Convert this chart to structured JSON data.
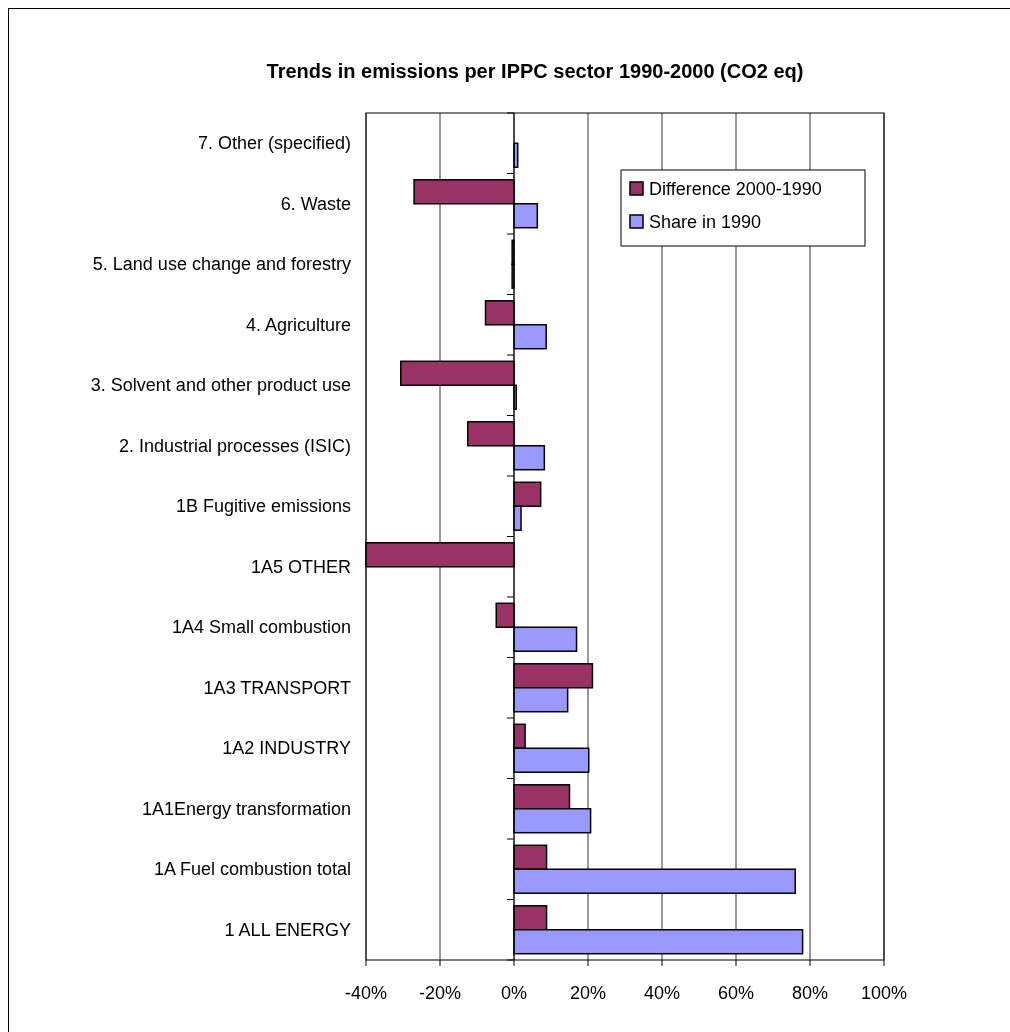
{
  "chart_data": {
    "type": "bar",
    "orientation": "horizontal",
    "title": "Trends in emissions per IPPC sector 1990-2000 (CO2 eq)",
    "categories": [
      "7. Other (specified)",
      "6. Waste",
      "5. Land use change and forestry",
      "4. Agriculture",
      "3. Solvent and other product use",
      "2. Industrial processes (ISIC)",
      "1B  Fugitive emissions",
      "1A5 OTHER",
      "1A4 Small combustion",
      "1A3 TRANSPORT",
      "1A2 INDUSTRY ",
      "1A1Energy transformation",
      "1A Fuel combustion   total",
      "1 ALL ENERGY"
    ],
    "series": [
      {
        "name": "Difference 2000-1990",
        "color": "#993366",
        "values": [
          null,
          -27,
          -0.5,
          -7.7,
          -30.6,
          -12.5,
          7.2,
          -40,
          -4.8,
          21.2,
          3,
          15,
          8.8,
          8.8
        ]
      },
      {
        "name": "Share in 1990",
        "color": "#9999ff",
        "values": [
          1,
          6.3,
          -0.5,
          8.7,
          0.6,
          8.2,
          1.9,
          null,
          16.9,
          14.5,
          20.2,
          20.7,
          76,
          78
        ]
      }
    ],
    "xlim": [
      -40,
      100
    ],
    "xticks": [
      {
        "value": -40,
        "label": "-40%"
      },
      {
        "value": -20,
        "label": "-20%"
      },
      {
        "value": 0,
        "label": "0%"
      },
      {
        "value": 20,
        "label": "20%"
      },
      {
        "value": 40,
        "label": "40%"
      },
      {
        "value": 60,
        "label": "60%"
      },
      {
        "value": 80,
        "label": "80%"
      },
      {
        "value": 100,
        "label": "100%"
      }
    ],
    "grid": "x",
    "legend": "top right"
  }
}
